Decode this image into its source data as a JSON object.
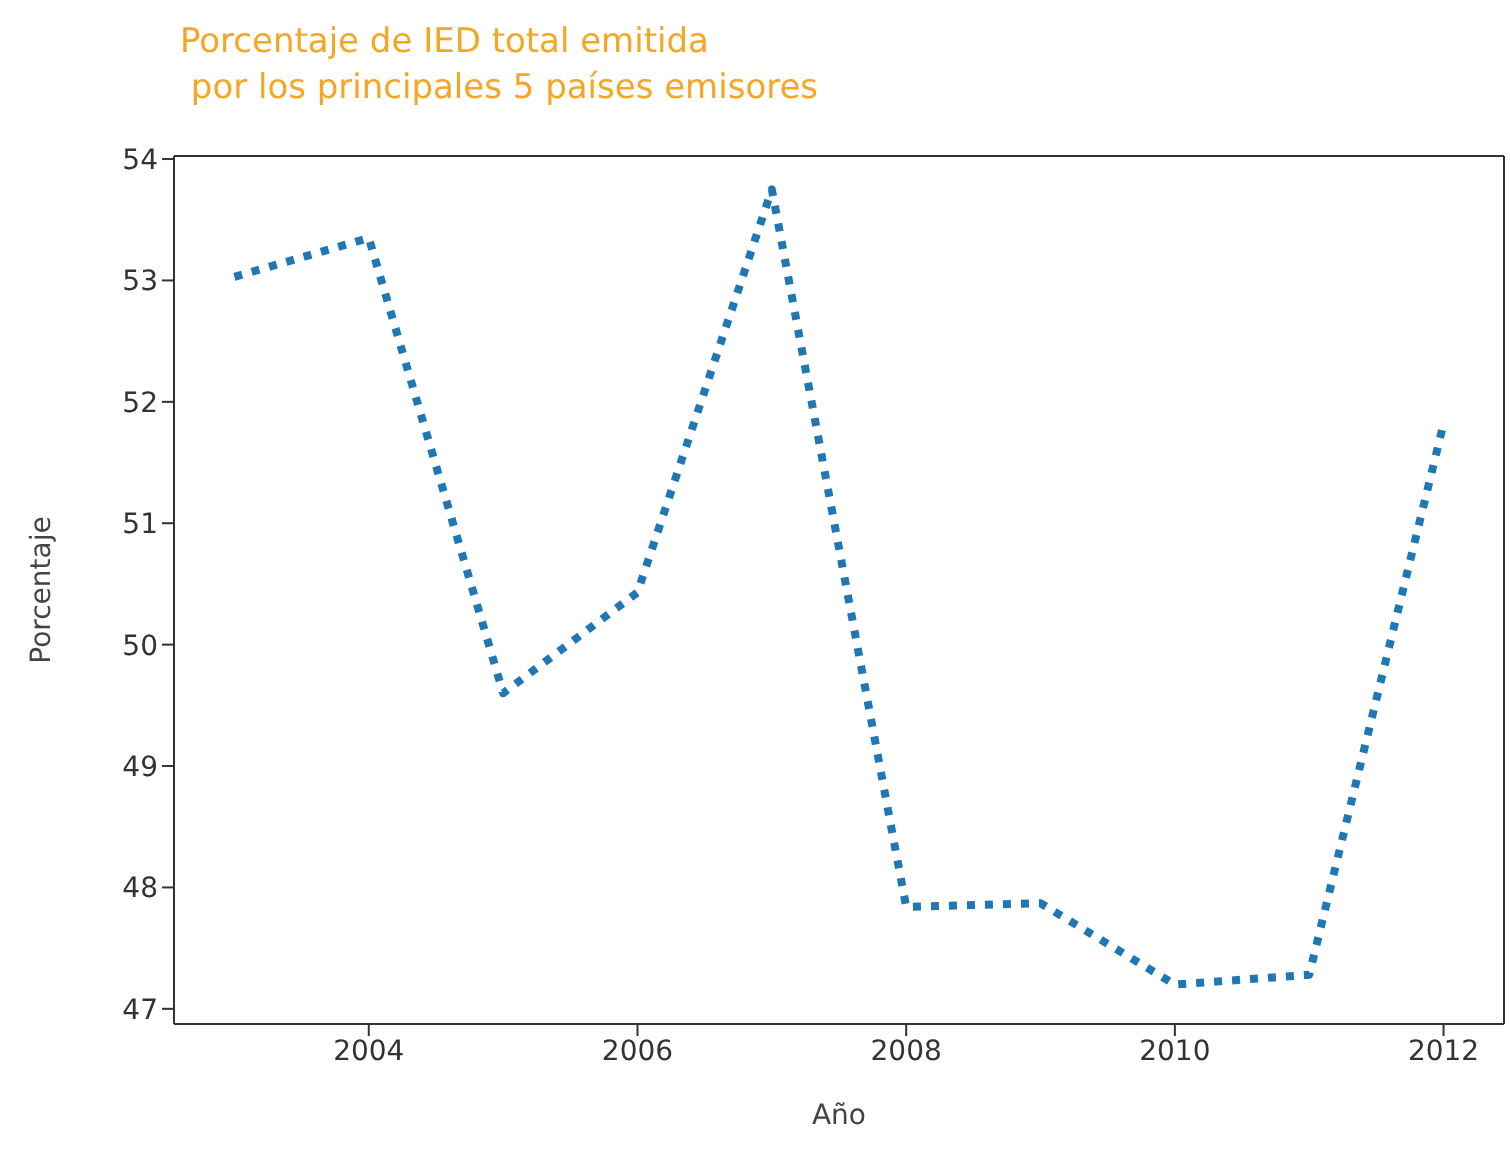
{
  "chart_data": {
    "type": "line",
    "title": "Porcentaje de IED total emitida\n por los principales 5 países emisores",
    "xlabel": "Año",
    "ylabel": "Porcentaje",
    "x": [
      2003,
      2004,
      2005,
      2006,
      2007,
      2008,
      2009,
      2010,
      2011,
      2012
    ],
    "series": [
      {
        "color": "#1f77b4",
        "values": [
          53.03,
          53.35,
          49.6,
          50.43,
          53.75,
          47.84,
          47.87,
          47.2,
          47.28,
          51.82
        ]
      }
    ],
    "xlim": [
      2002.55,
      2012.45
    ],
    "xticks": [
      2004,
      2006,
      2008,
      2010,
      2012
    ],
    "ylim": [
      46.875,
      54.025
    ],
    "yticks": [
      47,
      48,
      49,
      50,
      51,
      52,
      53,
      54
    ],
    "grid": false,
    "legend": false,
    "marker": "none",
    "line_style": "dotted"
  }
}
